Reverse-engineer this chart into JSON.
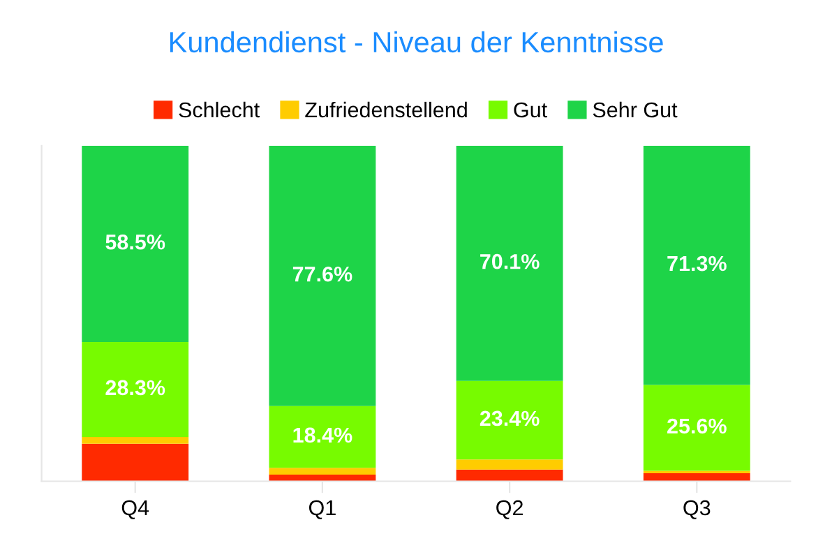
{
  "chart_data": {
    "type": "bar",
    "title": "Kundendienst - Niveau der Kenntnisse",
    "categories": [
      "Q4",
      "Q1",
      "Q2",
      "Q3"
    ],
    "stacked": true,
    "ylim": [
      0,
      100
    ],
    "tick_labels": "x",
    "legend": "top",
    "series": [
      {
        "name": "Schlecht",
        "color": "#ff2a00",
        "values": [
          11.2,
          2.0,
          3.5,
          2.4
        ],
        "value_labels": [
          null,
          null,
          null,
          null
        ]
      },
      {
        "name": "Zufriedenstellend",
        "color": "#ffcc00",
        "values": [
          2.0,
          2.0,
          3.0,
          0.7
        ],
        "value_labels": [
          null,
          null,
          null,
          null
        ]
      },
      {
        "name": "Gut",
        "color": "#77fb00",
        "values": [
          28.3,
          18.4,
          23.4,
          25.6
        ],
        "value_labels": [
          "28.3%",
          "18.4%",
          "23.4%",
          "25.6%"
        ]
      },
      {
        "name": "Sehr Gut",
        "color": "#1ed448",
        "values": [
          58.5,
          77.6,
          70.1,
          71.3
        ],
        "value_labels": [
          "58.5%",
          "77.6%",
          "70.1%",
          "71.3%"
        ]
      }
    ]
  }
}
